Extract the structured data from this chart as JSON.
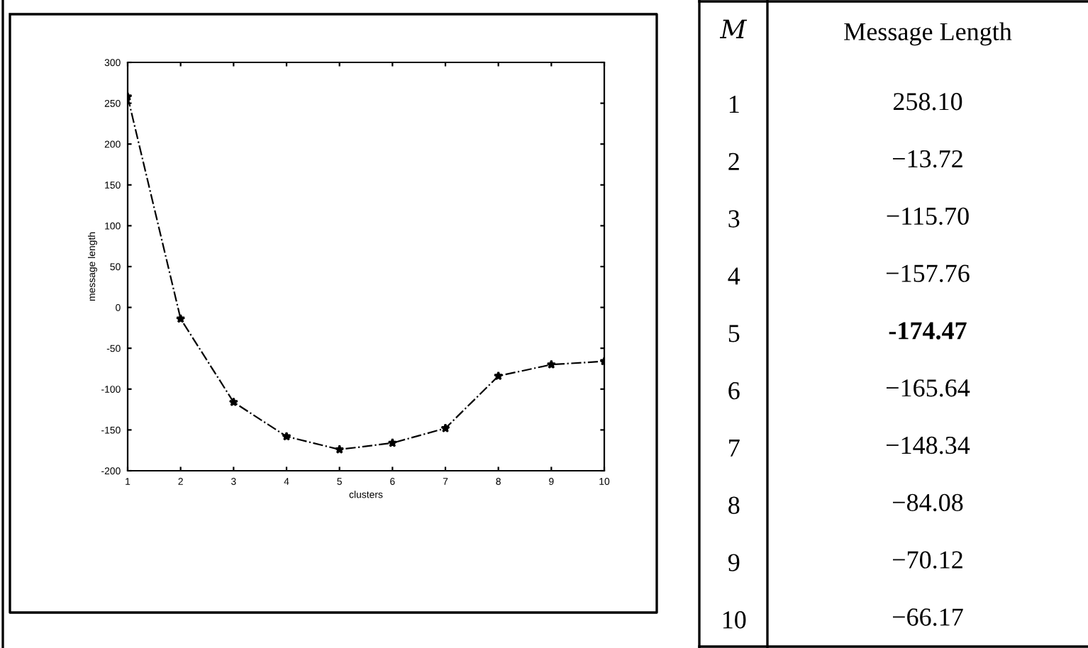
{
  "chart_data": [
    {
      "type": "line",
      "xlabel": "clusters",
      "ylabel": "message length",
      "x": [
        1,
        2,
        3,
        4,
        5,
        6,
        7,
        8,
        9,
        10
      ],
      "series": [
        {
          "color": "#000000",
          "values": [
            258,
            -14,
            -116,
            -158,
            -174,
            -166,
            -148,
            -84,
            -70,
            -66
          ]
        }
      ],
      "xlim": [
        1,
        10
      ],
      "xticks": [
        1,
        2,
        3,
        4,
        5,
        6,
        7,
        8,
        9,
        10
      ],
      "ylim": [
        -200,
        300
      ],
      "yticks": [
        -200,
        -150,
        -100,
        -50,
        0,
        50,
        100,
        150,
        200,
        250,
        300
      ],
      "marker": "star",
      "line_style": "dashed",
      "grid": false,
      "legend": false
    },
    {
      "type": "heatmap",
      "ylabel": "M",
      "categories": [
        "Message Length"
      ],
      "y_categories": [
        "1",
        "2",
        "3",
        "4",
        "5",
        "6",
        "7",
        "8",
        "9",
        "10"
      ],
      "cells": [
        [
          258.1
        ],
        [
          -13.72
        ],
        [
          -115.7
        ],
        [
          -157.76
        ],
        [
          -174.47
        ],
        [
          -165.64
        ],
        [
          -148.34
        ],
        [
          -84.08
        ],
        [
          -70.12
        ],
        [
          -66.17
        ]
      ],
      "cell_labels": [
        [
          "258.10"
        ],
        [
          "−13.72"
        ],
        [
          "−115.70"
        ],
        [
          "−157.76"
        ],
        [
          "-174.47"
        ],
        [
          "−165.64"
        ],
        [
          "−148.34"
        ],
        [
          "−84.08"
        ],
        [
          "−70.12"
        ],
        [
          "−66.17"
        ]
      ]
    }
  ]
}
